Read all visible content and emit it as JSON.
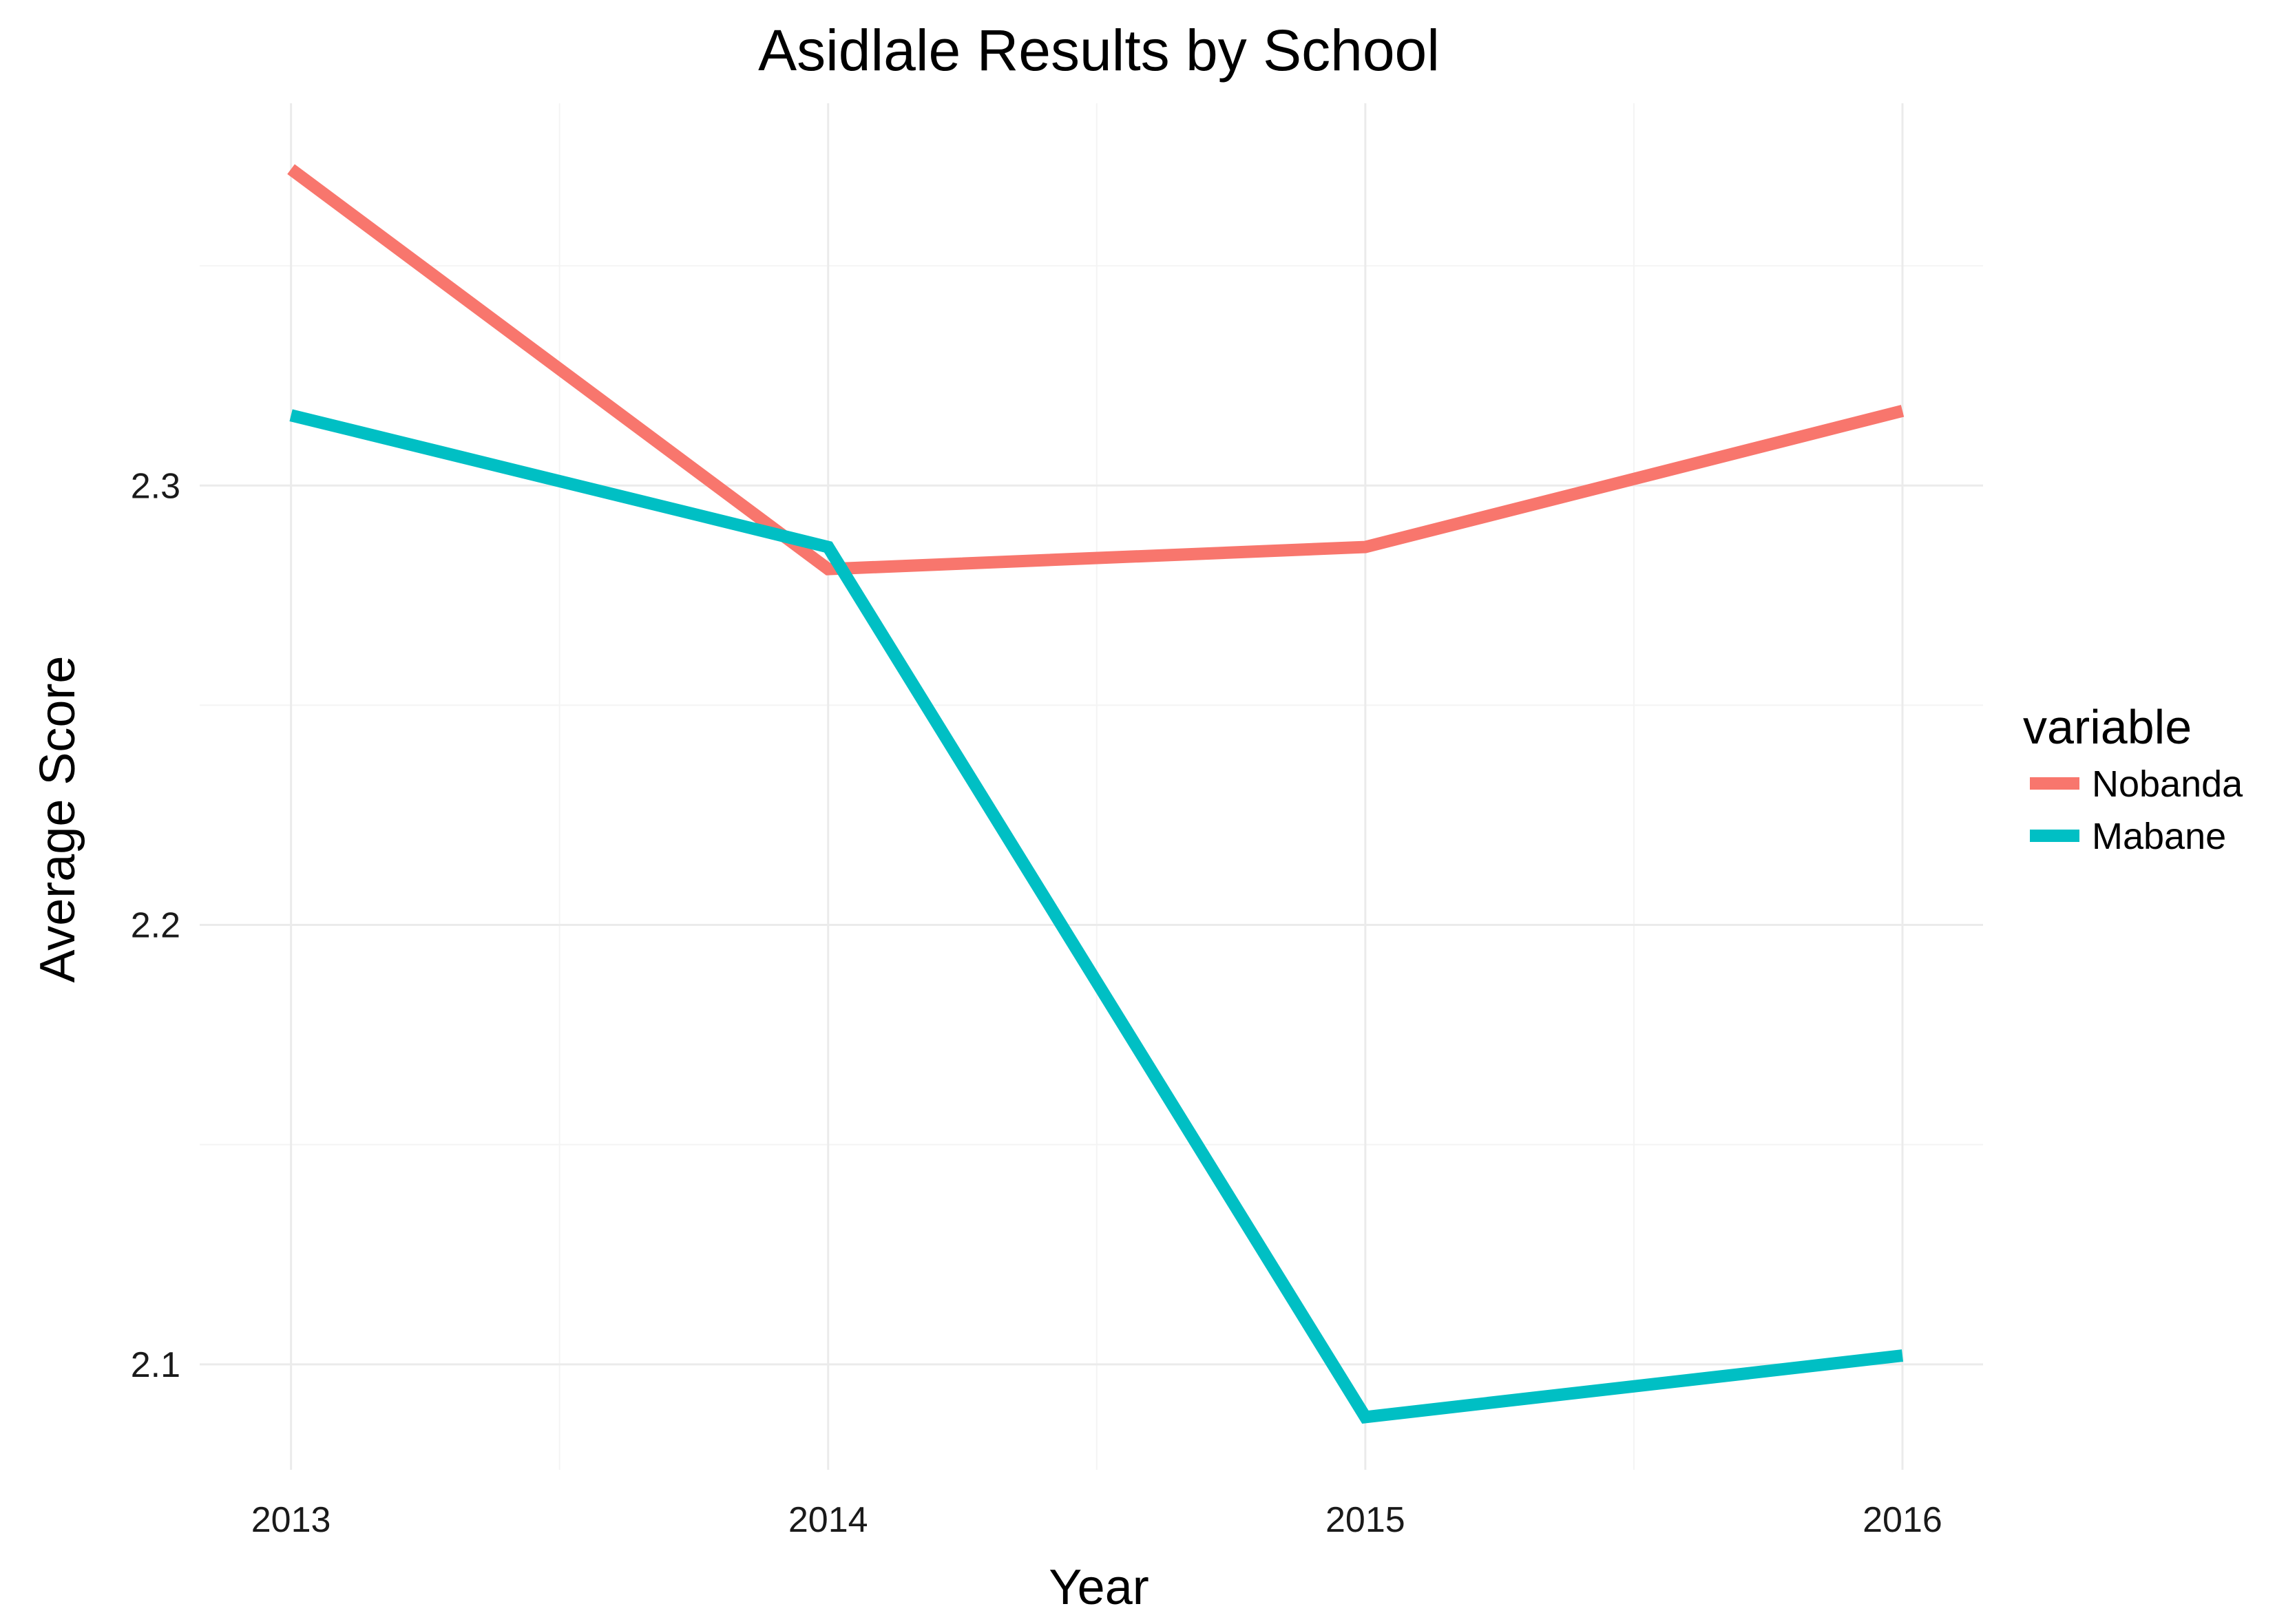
{
  "chart_data": {
    "type": "line",
    "title": "Asidlale Results by School",
    "xlabel": "Year",
    "ylabel": "Average Score",
    "x": [
      2013,
      2014,
      2015,
      2016
    ],
    "x_tick_labels": [
      "2013",
      "2014",
      "2015",
      "2016"
    ],
    "y_ticks": [
      2.1,
      2.2,
      2.3
    ],
    "y_tick_labels": [
      "2.1",
      "2.2",
      "2.3"
    ],
    "ylim": [
      2.076,
      2.387
    ],
    "grid": true,
    "legend": {
      "title": "variable",
      "position": "right"
    },
    "series": [
      {
        "name": "Nobanda",
        "color": "#F8766D",
        "values": [
          2.372,
          2.281,
          2.286,
          2.317
        ]
      },
      {
        "name": "Mabane",
        "color": "#00BFC4",
        "values": [
          2.316,
          2.286,
          2.088,
          2.102
        ]
      }
    ]
  }
}
